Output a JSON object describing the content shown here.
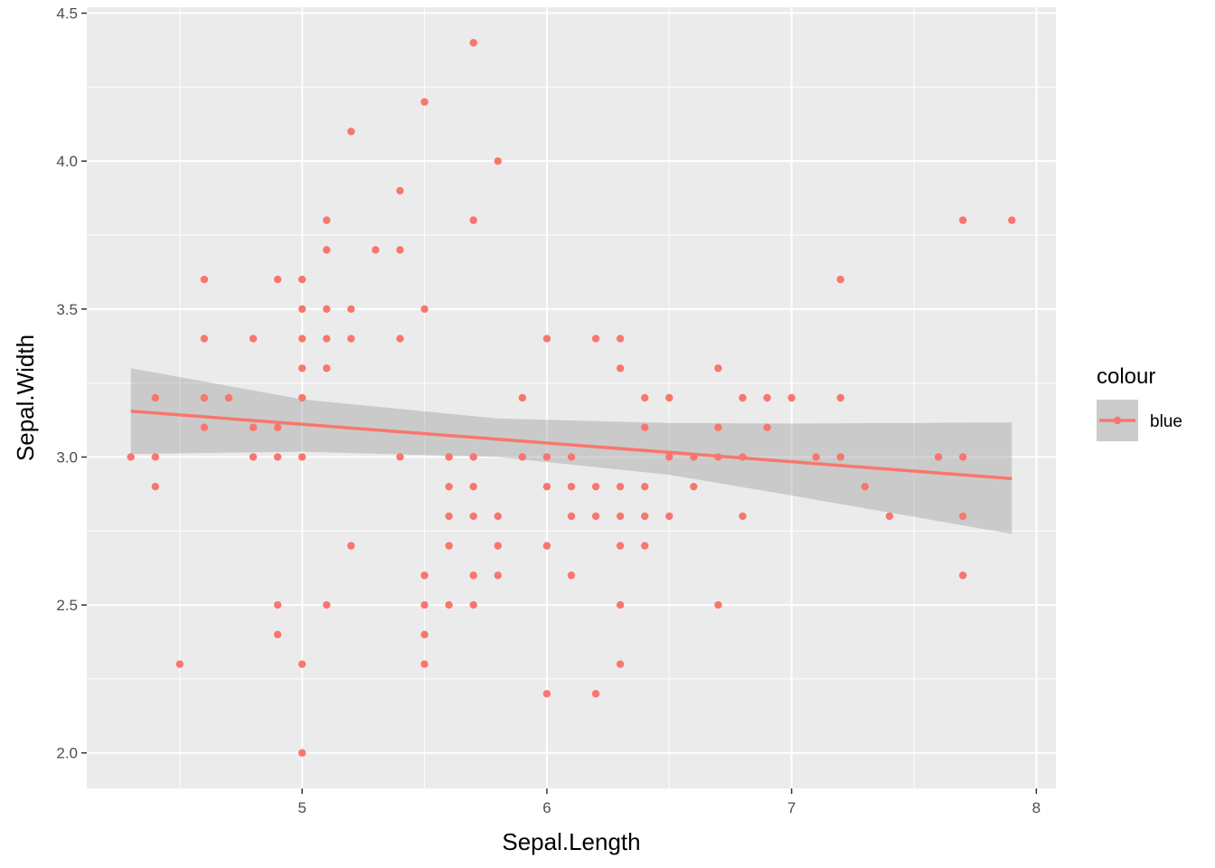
{
  "chart_data": {
    "type": "scatter",
    "xlabel": "Sepal.Length",
    "ylabel": "Sepal.Width",
    "xlim": [
      4.12,
      8.08
    ],
    "ylim": [
      1.88,
      4.52
    ],
    "xticks": [
      5,
      6,
      7,
      8
    ],
    "xtick_labels": [
      "5",
      "6",
      "7",
      "8"
    ],
    "yticks": [
      2.0,
      2.5,
      3.0,
      3.5,
      4.0,
      4.5
    ],
    "ytick_labels": [
      "2.0",
      "2.5",
      "3.0",
      "3.5",
      "4.0",
      "4.5"
    ],
    "grid": true,
    "legend": {
      "title": "colour",
      "position": "right",
      "entries": [
        {
          "label": "blue",
          "color": "#F8766D"
        }
      ]
    },
    "colors": {
      "panel": "#EBEBEB",
      "grid": "#FFFFFF",
      "point": "#F8766D",
      "ribbon": "#999999"
    },
    "series": [
      {
        "name": "blue",
        "points": [
          [
            4.3,
            3.0
          ],
          [
            4.4,
            3.2
          ],
          [
            4.4,
            3.0
          ],
          [
            4.4,
            2.9
          ],
          [
            4.5,
            2.3
          ],
          [
            4.6,
            3.6
          ],
          [
            4.6,
            3.4
          ],
          [
            4.6,
            3.2
          ],
          [
            4.6,
            3.1
          ],
          [
            4.7,
            3.2
          ],
          [
            4.8,
            3.4
          ],
          [
            4.8,
            3.1
          ],
          [
            4.8,
            3.0
          ],
          [
            4.9,
            3.6
          ],
          [
            4.9,
            3.1
          ],
          [
            4.9,
            3.0
          ],
          [
            4.9,
            2.5
          ],
          [
            4.9,
            2.4
          ],
          [
            5.0,
            3.6
          ],
          [
            5.0,
            3.5
          ],
          [
            5.0,
            3.4
          ],
          [
            5.0,
            3.3
          ],
          [
            5.0,
            3.2
          ],
          [
            5.0,
            3.0
          ],
          [
            5.0,
            2.3
          ],
          [
            5.0,
            2.0
          ],
          [
            5.1,
            3.8
          ],
          [
            5.1,
            3.7
          ],
          [
            5.1,
            3.5
          ],
          [
            5.1,
            3.4
          ],
          [
            5.1,
            3.3
          ],
          [
            5.1,
            2.5
          ],
          [
            5.2,
            4.1
          ],
          [
            5.2,
            3.5
          ],
          [
            5.2,
            3.4
          ],
          [
            5.2,
            2.7
          ],
          [
            5.3,
            3.7
          ],
          [
            5.4,
            3.9
          ],
          [
            5.4,
            3.7
          ],
          [
            5.4,
            3.4
          ],
          [
            5.4,
            3.0
          ],
          [
            5.5,
            4.2
          ],
          [
            5.5,
            3.5
          ],
          [
            5.5,
            2.6
          ],
          [
            5.5,
            2.5
          ],
          [
            5.5,
            2.4
          ],
          [
            5.5,
            2.3
          ],
          [
            5.6,
            3.0
          ],
          [
            5.6,
            2.9
          ],
          [
            5.6,
            2.8
          ],
          [
            5.6,
            2.7
          ],
          [
            5.6,
            2.5
          ],
          [
            5.7,
            4.4
          ],
          [
            5.7,
            3.8
          ],
          [
            5.7,
            3.0
          ],
          [
            5.7,
            2.9
          ],
          [
            5.7,
            2.8
          ],
          [
            5.7,
            2.6
          ],
          [
            5.7,
            2.5
          ],
          [
            5.8,
            4.0
          ],
          [
            5.8,
            2.8
          ],
          [
            5.8,
            2.7
          ],
          [
            5.8,
            2.6
          ],
          [
            5.9,
            3.2
          ],
          [
            5.9,
            3.0
          ],
          [
            6.0,
            3.4
          ],
          [
            6.0,
            3.0
          ],
          [
            6.0,
            2.9
          ],
          [
            6.0,
            2.7
          ],
          [
            6.0,
            2.2
          ],
          [
            6.1,
            3.0
          ],
          [
            6.1,
            2.9
          ],
          [
            6.1,
            2.8
          ],
          [
            6.1,
            2.6
          ],
          [
            6.2,
            3.4
          ],
          [
            6.2,
            2.9
          ],
          [
            6.2,
            2.8
          ],
          [
            6.2,
            2.2
          ],
          [
            6.3,
            3.4
          ],
          [
            6.3,
            3.3
          ],
          [
            6.3,
            2.9
          ],
          [
            6.3,
            2.8
          ],
          [
            6.3,
            2.7
          ],
          [
            6.3,
            2.5
          ],
          [
            6.3,
            2.3
          ],
          [
            6.4,
            3.2
          ],
          [
            6.4,
            3.1
          ],
          [
            6.4,
            2.9
          ],
          [
            6.4,
            2.8
          ],
          [
            6.4,
            2.7
          ],
          [
            6.5,
            3.2
          ],
          [
            6.5,
            3.0
          ],
          [
            6.5,
            2.8
          ],
          [
            6.6,
            3.0
          ],
          [
            6.6,
            2.9
          ],
          [
            6.7,
            3.3
          ],
          [
            6.7,
            3.1
          ],
          [
            6.7,
            3.0
          ],
          [
            6.7,
            2.5
          ],
          [
            6.8,
            3.2
          ],
          [
            6.8,
            3.0
          ],
          [
            6.8,
            2.8
          ],
          [
            6.9,
            3.2
          ],
          [
            6.9,
            3.1
          ],
          [
            7.0,
            3.2
          ],
          [
            7.1,
            3.0
          ],
          [
            7.2,
            3.6
          ],
          [
            7.2,
            3.2
          ],
          [
            7.2,
            3.0
          ],
          [
            7.3,
            2.9
          ],
          [
            7.4,
            2.8
          ],
          [
            7.6,
            3.0
          ],
          [
            7.7,
            3.8
          ],
          [
            7.7,
            3.0
          ],
          [
            7.7,
            2.8
          ],
          [
            7.7,
            2.6
          ],
          [
            7.9,
            3.8
          ]
        ]
      }
    ],
    "smooth": {
      "method": "lm",
      "fit": [
        [
          4.3,
          3.155
        ],
        [
          7.9,
          2.927
        ]
      ],
      "ribbon_upper": [
        [
          4.3,
          3.3
        ],
        [
          5.0,
          3.195
        ],
        [
          5.8,
          3.13
        ],
        [
          6.5,
          3.115
        ],
        [
          7.0,
          3.113
        ],
        [
          7.9,
          3.117
        ]
      ],
      "ribbon_lower": [
        [
          4.3,
          3.01
        ],
        [
          5.0,
          3.018
        ],
        [
          5.8,
          3.0
        ],
        [
          6.5,
          2.94
        ],
        [
          7.0,
          2.87
        ],
        [
          7.9,
          2.74
        ]
      ]
    }
  }
}
